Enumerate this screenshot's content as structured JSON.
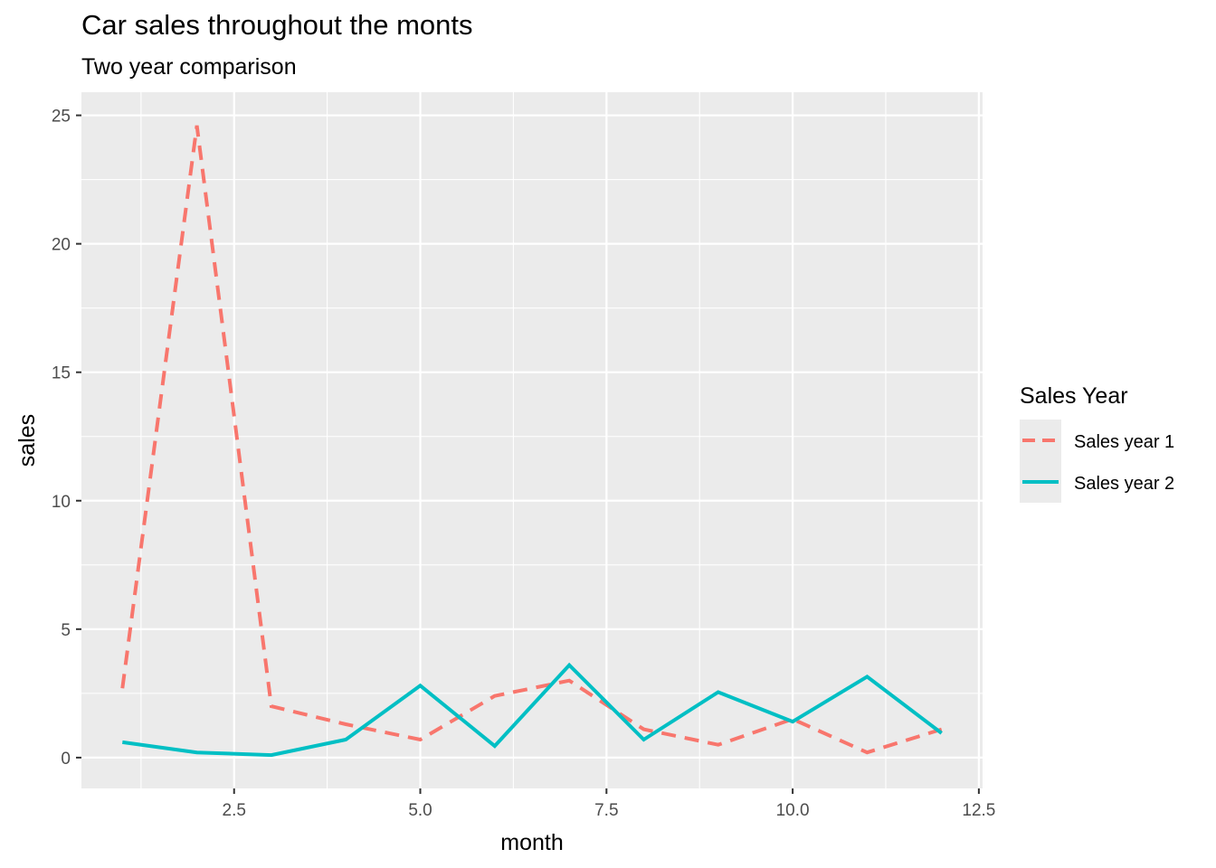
{
  "chart_data": {
    "type": "line",
    "title": "Car sales throughout the monts",
    "subtitle": "Two year comparison",
    "xlabel": "month",
    "ylabel": "sales",
    "x": [
      1,
      2,
      3,
      4,
      5,
      6,
      7,
      8,
      9,
      10,
      11,
      12
    ],
    "xlim": [
      0.45,
      12.55
    ],
    "ylim": [
      -1.2,
      25.9
    ],
    "x_ticks": [
      2.5,
      5.0,
      7.5,
      10.0,
      12.5
    ],
    "x_tick_labels": [
      "2.5",
      "5.0",
      "7.5",
      "10.0",
      "12.5"
    ],
    "y_ticks": [
      0,
      5,
      10,
      15,
      20,
      25
    ],
    "y_tick_labels": [
      "0",
      "5",
      "10",
      "15",
      "20",
      "25"
    ],
    "grid": true,
    "legend": {
      "title": "Sales Year",
      "position": "right"
    },
    "series": [
      {
        "name": "Sales year 1",
        "color": "#F8766D",
        "linetype": "dashed",
        "values": [
          2.7,
          24.6,
          2.0,
          1.3,
          0.7,
          2.4,
          3.0,
          1.1,
          0.5,
          1.5,
          0.2,
          1.1
        ]
      },
      {
        "name": "Sales year 2",
        "color": "#00BFC4",
        "linetype": "solid",
        "values": [
          0.6,
          0.2,
          0.1,
          0.7,
          2.8,
          0.45,
          3.6,
          0.7,
          2.55,
          1.4,
          3.15,
          0.95
        ]
      }
    ],
    "panel_color": "#EBEBEB",
    "grid_color": "#FFFFFF"
  }
}
